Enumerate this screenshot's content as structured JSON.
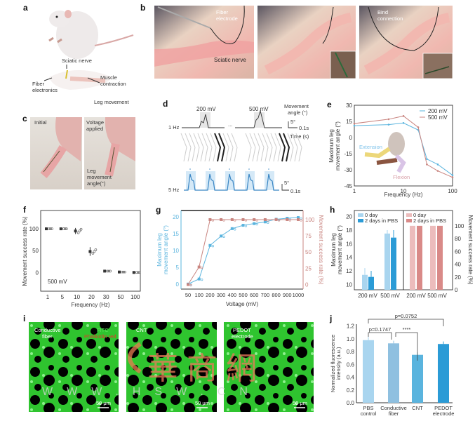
{
  "panel_labels": [
    "a",
    "b",
    "c",
    "d",
    "e",
    "f",
    "g",
    "h",
    "i",
    "j"
  ],
  "a": {
    "sciatic_nerve": "Sciatic nerve",
    "fiber_1": "Fiber",
    "fiber_2": "electronics",
    "muscle_1": "Muscle",
    "muscle_2": "contraction",
    "leg_movement": "Leg movement"
  },
  "b": {
    "fiber_1": "Fiber",
    "fiber_2": "electrode",
    "sciatic_nerve": "Sciatic nerve",
    "bind_1": "Bind",
    "bind_2": "connection"
  },
  "c": {
    "initial": "Initial",
    "voltage_1": "Voltage",
    "voltage_2": "applied",
    "leg_1": "Leg",
    "leg_2": "movement",
    "leg_3": "angle(°)"
  },
  "d": {
    "v200": "200 mV",
    "v500": "500 mV",
    "hz1": "1 Hz",
    "hz5": "5 Hz",
    "angle_1": "Movement",
    "angle_2": "angle (°)",
    "scale_deg": "5°",
    "scale_t": "0.1s",
    "time": "Time (s)",
    "dots": "..."
  },
  "e_extra": {
    "extension": "Extension",
    "flexion": "Flexion"
  },
  "i": {
    "img1_1": "Conductive",
    "img1_2": "fiber",
    "fitc": "FITC",
    "phalloidin": "Phalloidin red",
    "img2": "CNT",
    "img3_1": "PEDOT",
    "img3_2": "electrode",
    "scale": "50 μm"
  },
  "watermark": {
    "chars": "華商網",
    "url": "WWW.HSW.CN"
  },
  "colors": {
    "blue": "#5ab4de",
    "red": "#c98580",
    "light_blue": "#a9d5ef",
    "dark_blue": "#2b9bd6",
    "light_red": "#ecbcbc",
    "dark_red": "#d98a88",
    "green": "#2fd12f"
  },
  "chart_data": [
    {
      "id": "e",
      "type": "line",
      "title": "",
      "xlabel": "Frequency (Hz)",
      "ylabel_1": "Maximum leg",
      "ylabel_2": "movement angle (°)",
      "x": [
        1,
        5,
        10,
        20,
        30,
        50,
        100
      ],
      "xscale": "log",
      "xlim": [
        1,
        100
      ],
      "xticks": [
        "1",
        "10",
        "100"
      ],
      "ylim": [
        -45,
        30
      ],
      "yticks": [
        30,
        15,
        0,
        -15,
        -30,
        -45
      ],
      "legend": "top-right",
      "series": [
        {
          "name": "200 mV",
          "values": [
            11,
            12,
            13.5,
            7,
            -20,
            -25,
            -35
          ]
        },
        {
          "name": "500 mV",
          "values": [
            13,
            17,
            20,
            9.5,
            -25,
            -31,
            -37
          ]
        }
      ]
    },
    {
      "id": "f",
      "type": "scatter",
      "xlabel": "Frequency (Hz)",
      "ylabel": "Movement success rate (%)",
      "annotation": "500 mV",
      "categories": [
        "1",
        "5",
        "10",
        "20",
        "30",
        "50",
        "100"
      ],
      "values": [
        100,
        100,
        95,
        48,
        3,
        1,
        0
      ],
      "errors": [
        0,
        0,
        7,
        10,
        0,
        0,
        0
      ],
      "ylim": [
        -43,
        142
      ],
      "yticks": [
        0,
        50,
        100
      ]
    },
    {
      "id": "g",
      "type": "line",
      "xlabel": "Voltage (mV)",
      "ylabel_1": "Maximum leg",
      "ylabel_2": "movement angle (°)",
      "ylabel_right": "Movement success rate (%)",
      "categories": [
        "50",
        "100",
        "200",
        "300",
        "400",
        "500",
        "600",
        "700",
        "800",
        "900",
        "1000"
      ],
      "series": [
        {
          "name": "Maximum leg movement angle",
          "axis": "left",
          "values": [
            0,
            1.5,
            11.5,
            14.3,
            16.5,
            17.5,
            18,
            18.5,
            19.3,
            19.6,
            19.8
          ]
        },
        {
          "name": "Movement success rate",
          "axis": "right",
          "values": [
            0,
            27,
            100,
            100,
            100,
            100,
            100,
            100,
            100,
            100,
            100
          ]
        }
      ],
      "ylim_left": [
        -1.5,
        21.9
      ],
      "yticks_left": [
        0,
        5,
        10,
        15,
        20
      ],
      "ylim_right": [
        -7,
        114
      ],
      "yticks_right": [
        0,
        25,
        50,
        75,
        100
      ]
    },
    {
      "id": "h",
      "type": "bar",
      "ylabel_1": "Maximum leg",
      "ylabel_2": "movement angle (°)",
      "ylabel_right": "Movement success rate (%)",
      "categories": [
        "200 mV",
        "500 mV"
      ],
      "left_series": [
        {
          "name": "0 day",
          "values": [
            11.4,
            17.5
          ],
          "errors": [
            1,
            0.5
          ]
        },
        {
          "name": "2 days in PBS",
          "values": [
            11.1,
            16.9
          ],
          "errors": [
            0.9,
            1.1
          ]
        }
      ],
      "right_series": [
        {
          "name": "0 day",
          "values": [
            100,
            100
          ]
        },
        {
          "name": "2 days in PBS",
          "values": [
            100,
            100
          ]
        }
      ],
      "ylim_left": [
        9.2,
        20.9
      ],
      "yticks_left": [
        10,
        12,
        14,
        16,
        18,
        20
      ],
      "ylim_right": [
        0,
        124
      ],
      "yticks_right": [
        0,
        20,
        40,
        60,
        80,
        100
      ]
    },
    {
      "id": "j",
      "type": "bar",
      "ylabel_1": "Normalized fluorescence",
      "ylabel_2": "intensity (a.u.)",
      "categories": [
        "PBS control",
        "Conductive fiber",
        "CNT",
        "PEDOT electrode"
      ],
      "category_lines": [
        [
          "PBS",
          "control"
        ],
        [
          "Conductive",
          "fiber"
        ],
        [
          "CNT",
          ""
        ],
        [
          "PEDOT",
          "electrode"
        ]
      ],
      "values": [
        0.98,
        0.93,
        0.75,
        0.92
      ],
      "errors": [
        0.05,
        0.04,
        0.04,
        0.04
      ],
      "ylim": [
        0,
        1.23
      ],
      "yticks": [
        0,
        0.2,
        0.4,
        0.6,
        0.8,
        1.0,
        1.2
      ],
      "annotations": [
        {
          "text": "p=0.1747",
          "from": 0,
          "to": 1
        },
        {
          "text": "****",
          "from": 1,
          "to": 2
        },
        {
          "text": "p=0.0752",
          "from": 0,
          "to": 3
        }
      ]
    }
  ]
}
